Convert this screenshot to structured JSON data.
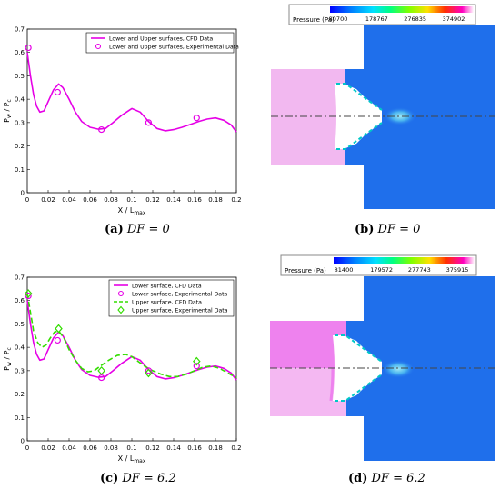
{
  "captions": [
    {
      "letter": "(a)",
      "text": "DF = 0"
    },
    {
      "letter": "(b)",
      "text": "DF = 0"
    },
    {
      "letter": "(c)",
      "text": "DF = 6.2"
    },
    {
      "letter": "(d)",
      "text": "DF = 6.2"
    }
  ],
  "colors": {
    "magenta": "#E600E6",
    "green": "#33DD00",
    "nozzle_blue": "#1F6FEB",
    "inner_pink_a": "#F2B8F0",
    "inner_pink_c_top": "#EE82EE",
    "inner_pink_c_bottom": "#F4B8F2"
  },
  "chart_data": [
    {
      "type": "line",
      "panel": "a",
      "xlabel": "X / L",
      "xlabel_sub": "max",
      "ylabel": "P",
      "ylabel_sub1": "w",
      "ylabel_mid": " / P",
      "ylabel_sub2": "c",
      "xlim": [
        0,
        0.2
      ],
      "ylim": [
        0,
        0.7
      ],
      "xticks": [
        "0",
        "0.02",
        "0.04",
        "0.06",
        "0.08",
        "0.1",
        "0.12",
        "0.14",
        "0.16",
        "0.18",
        "0.2"
      ],
      "yticks": [
        "0",
        "0.1",
        "0.2",
        "0.3",
        "0.4",
        "0.5",
        "0.6",
        "0.7"
      ],
      "legend": [
        "Lower and Upper surfaces, CFD Data",
        "Lower and Upper surfaces, Experimental Data"
      ],
      "series": [
        {
          "name": "Lower and Upper surfaces, CFD Data",
          "style": "solid",
          "color": "#E600E6",
          "x": [
            0,
            0.003,
            0.006,
            0.009,
            0.012,
            0.016,
            0.02,
            0.025,
            0.03,
            0.034,
            0.04,
            0.046,
            0.052,
            0.06,
            0.068,
            0.075,
            0.082,
            0.09,
            0.1,
            0.108,
            0.116,
            0.124,
            0.132,
            0.14,
            0.148,
            0.156,
            0.164,
            0.172,
            0.18,
            0.188,
            0.195,
            0.2
          ],
          "y": [
            0.6,
            0.5,
            0.42,
            0.37,
            0.345,
            0.35,
            0.39,
            0.44,
            0.465,
            0.45,
            0.4,
            0.345,
            0.305,
            0.28,
            0.272,
            0.275,
            0.3,
            0.33,
            0.36,
            0.345,
            0.305,
            0.275,
            0.265,
            0.27,
            0.28,
            0.292,
            0.305,
            0.315,
            0.32,
            0.31,
            0.29,
            0.26
          ]
        },
        {
          "name": "Lower and Upper surfaces, Experimental Data",
          "style": "circle",
          "color": "#E600E6",
          "x": [
            0.001,
            0.029,
            0.071,
            0.116,
            0.162
          ],
          "y": [
            0.62,
            0.43,
            0.27,
            0.3,
            0.32
          ]
        }
      ]
    },
    {
      "type": "line",
      "panel": "c",
      "xlabel": "X / L",
      "xlabel_sub": "max",
      "ylabel": "P",
      "ylabel_sub1": "w",
      "ylabel_mid": " / P",
      "ylabel_sub2": "c",
      "xlim": [
        0,
        0.2
      ],
      "ylim": [
        0,
        0.7
      ],
      "xticks": [
        "0",
        "0.02",
        "0.04",
        "0.06",
        "0.08",
        "0.1",
        "0.12",
        "0.14",
        "0.16",
        "0.18",
        "0.2"
      ],
      "yticks": [
        "0",
        "0.1",
        "0.2",
        "0.3",
        "0.4",
        "0.5",
        "0.6",
        "0.7"
      ],
      "legend": [
        "Lower surface, CFD Data",
        "Lower surface, Experimental Data",
        "Upper surface, CFD Data",
        "Upper surface, Experimental Data"
      ],
      "series": [
        {
          "name": "Lower surface, CFD Data",
          "style": "solid",
          "color": "#E600E6",
          "x": [
            0,
            0.003,
            0.006,
            0.009,
            0.012,
            0.016,
            0.02,
            0.025,
            0.03,
            0.034,
            0.04,
            0.046,
            0.052,
            0.06,
            0.068,
            0.075,
            0.082,
            0.09,
            0.1,
            0.108,
            0.116,
            0.124,
            0.132,
            0.14,
            0.148,
            0.156,
            0.164,
            0.172,
            0.18,
            0.188,
            0.195,
            0.2
          ],
          "y": [
            0.6,
            0.5,
            0.42,
            0.37,
            0.345,
            0.35,
            0.39,
            0.44,
            0.465,
            0.45,
            0.4,
            0.345,
            0.305,
            0.28,
            0.272,
            0.275,
            0.3,
            0.33,
            0.36,
            0.345,
            0.305,
            0.275,
            0.265,
            0.27,
            0.28,
            0.292,
            0.305,
            0.315,
            0.32,
            0.31,
            0.29,
            0.26
          ]
        },
        {
          "name": "Lower surface, Experimental Data",
          "style": "circle",
          "color": "#E600E6",
          "x": [
            0.001,
            0.029,
            0.071,
            0.116,
            0.162
          ],
          "y": [
            0.62,
            0.43,
            0.27,
            0.3,
            0.32
          ]
        },
        {
          "name": "Upper surface, CFD Data",
          "style": "dashed",
          "color": "#33DD00",
          "x": [
            0,
            0.003,
            0.006,
            0.01,
            0.014,
            0.018,
            0.022,
            0.026,
            0.03,
            0.035,
            0.04,
            0.046,
            0.052,
            0.058,
            0.064,
            0.07,
            0.078,
            0.086,
            0.094,
            0.1,
            0.106,
            0.112,
            0.12,
            0.128,
            0.136,
            0.144,
            0.152,
            0.16,
            0.168,
            0.176,
            0.184,
            0.192,
            0.2
          ],
          "y": [
            0.63,
            0.55,
            0.47,
            0.42,
            0.4,
            0.41,
            0.44,
            0.465,
            0.47,
            0.44,
            0.39,
            0.345,
            0.31,
            0.295,
            0.3,
            0.32,
            0.345,
            0.365,
            0.37,
            0.36,
            0.34,
            0.32,
            0.3,
            0.285,
            0.275,
            0.275,
            0.285,
            0.3,
            0.315,
            0.32,
            0.31,
            0.29,
            0.27
          ]
        },
        {
          "name": "Upper surface, Experimental Data",
          "style": "diamond",
          "color": "#33DD00",
          "x": [
            0.001,
            0.03,
            0.071,
            0.116,
            0.162
          ],
          "y": [
            0.63,
            0.48,
            0.3,
            0.29,
            0.34
          ]
        }
      ]
    },
    {
      "type": "heatmap",
      "panel": "b",
      "colorbar_label": "Pressure (Pa)",
      "colorbar_ticks": [
        "80700",
        "178767",
        "276835",
        "374902"
      ]
    },
    {
      "type": "heatmap",
      "panel": "d",
      "colorbar_label": "Pressure (Pa)",
      "colorbar_ticks": [
        "81400",
        "179572",
        "277743",
        "375915"
      ]
    }
  ]
}
